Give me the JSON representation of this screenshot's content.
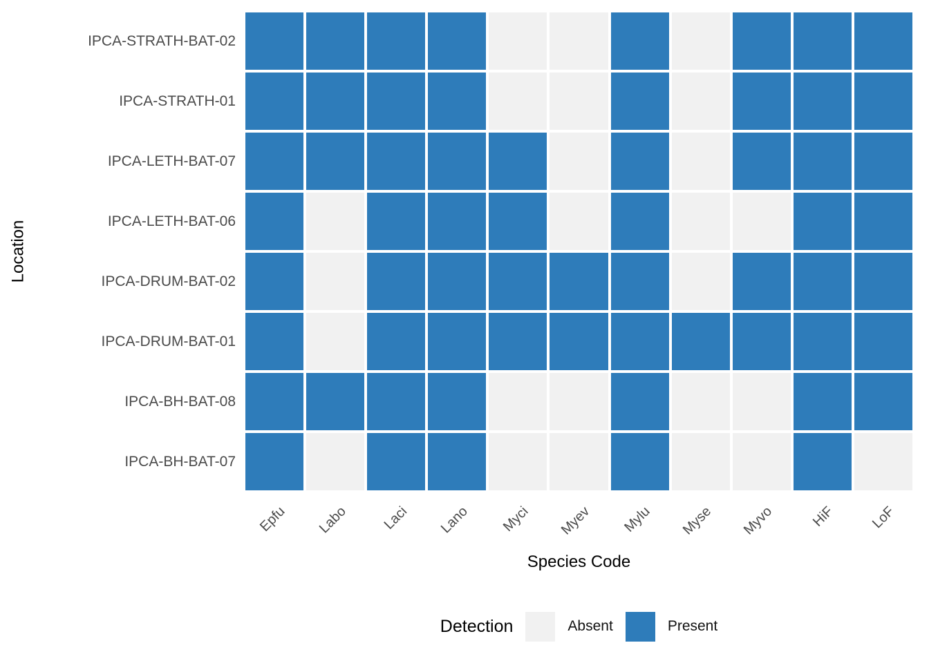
{
  "chart_data": {
    "type": "heatmap",
    "xlabel": "Species Code",
    "ylabel": "Location",
    "x_categories": [
      "Epfu",
      "Labo",
      "Laci",
      "Lano",
      "Myci",
      "Myev",
      "Mylu",
      "Myse",
      "Myvo",
      "HiF",
      "LoF"
    ],
    "y_categories": [
      "IPCA-STRATH-BAT-02",
      "IPCA-STRATH-01",
      "IPCA-LETH-BAT-07",
      "IPCA-LETH-BAT-06",
      "IPCA-DRUM-BAT-02",
      "IPCA-DRUM-BAT-01",
      "IPCA-BH-BAT-08",
      "IPCA-BH-BAT-07"
    ],
    "values": [
      [
        1,
        1,
        1,
        1,
        0,
        0,
        1,
        0,
        1,
        1,
        1
      ],
      [
        1,
        1,
        1,
        1,
        0,
        0,
        1,
        0,
        1,
        1,
        1
      ],
      [
        1,
        1,
        1,
        1,
        1,
        0,
        1,
        0,
        1,
        1,
        1
      ],
      [
        1,
        0,
        1,
        1,
        1,
        0,
        1,
        0,
        0,
        1,
        1
      ],
      [
        1,
        0,
        1,
        1,
        1,
        1,
        1,
        0,
        1,
        1,
        1
      ],
      [
        1,
        0,
        1,
        1,
        1,
        1,
        1,
        1,
        1,
        1,
        1
      ],
      [
        1,
        1,
        1,
        1,
        0,
        0,
        1,
        0,
        0,
        1,
        1
      ],
      [
        1,
        0,
        1,
        1,
        0,
        0,
        1,
        0,
        0,
        1,
        0
      ]
    ],
    "value_meaning": {
      "0": "Absent",
      "1": "Present"
    },
    "legend": {
      "title": "Detection",
      "position": "bottom",
      "entries": [
        {
          "label": "Absent",
          "value": 0,
          "color": "#f1f1f1"
        },
        {
          "label": "Present",
          "value": 1,
          "color": "#2e7cba"
        }
      ]
    },
    "colors": {
      "absent": "#f1f1f1",
      "present": "#2e7cba",
      "grid_gap": "#ffffff"
    },
    "layout": {
      "grid": "off",
      "background": "#ffffff",
      "x_tick_angle": 45
    }
  }
}
